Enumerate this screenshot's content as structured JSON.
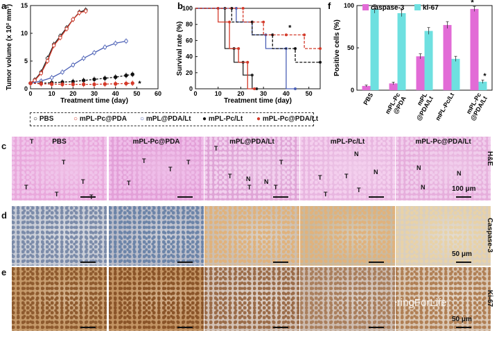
{
  "panels": {
    "a": "a",
    "b": "b",
    "c": "c",
    "d": "d",
    "e": "e",
    "f": "f"
  },
  "legend": [
    "PBS",
    "mPL-Pc@PDA",
    "mPL@PDA/Lt",
    "mPL-Pc/Lt",
    "mPL-Pc@PDA/Lt"
  ],
  "colors": {
    "pbs": "#222222",
    "pc_pda": "#d43a2a",
    "pda_lt": "#4a5fb5",
    "pc_lt": "#111111",
    "pc_pda_lt": "#d43a2a",
    "caspase": "#e26bd6",
    "ki67": "#6ee0e0"
  },
  "chart_data": [
    {
      "id": "a",
      "type": "line",
      "xlabel": "Treatment time  (day)",
      "ylabel": "Tumor volume (x 10² mm³)",
      "xlim": [
        0,
        60
      ],
      "ylim": [
        0,
        15
      ],
      "xticks": [
        "0",
        "10",
        "20",
        "30",
        "40",
        "50",
        "60"
      ],
      "yticks": [
        "0",
        "5",
        "10",
        "15"
      ],
      "annotation": "*",
      "series": [
        {
          "name": "PBS",
          "x": [
            0,
            2,
            5,
            8,
            11,
            14,
            17,
            20,
            23,
            26
          ],
          "y": [
            1,
            1.6,
            3,
            5.5,
            8,
            9.5,
            11,
            12.5,
            13.8,
            14.2
          ]
        },
        {
          "name": "mPL-Pc@PDA",
          "x": [
            0,
            2,
            5,
            8,
            11,
            14,
            17,
            20,
            23,
            26
          ],
          "y": [
            1,
            1.5,
            2.8,
            5,
            7.8,
            9.2,
            10.8,
            12.5,
            13.7,
            14
          ]
        },
        {
          "name": "mPL@PDA/Lt",
          "x": [
            0,
            5,
            10,
            15,
            20,
            25,
            30,
            35,
            40,
            45
          ],
          "y": [
            1,
            1.4,
            2,
            3,
            4.3,
            5.5,
            6.5,
            7.5,
            8.2,
            8.6
          ]
        },
        {
          "name": "mPL-Pc/Lt",
          "x": [
            0,
            5,
            10,
            15,
            20,
            25,
            30,
            35,
            40,
            45,
            48
          ],
          "y": [
            1,
            1,
            1.1,
            1.2,
            1.3,
            1.5,
            1.7,
            1.9,
            2.1,
            2.4,
            2.6
          ]
        },
        {
          "name": "mPL-Pc@PDA/Lt",
          "x": [
            0,
            5,
            10,
            15,
            20,
            25,
            30,
            35,
            40,
            45,
            48
          ],
          "y": [
            1,
            0.9,
            0.85,
            0.8,
            0.8,
            0.8,
            0.8,
            0.85,
            0.9,
            0.95,
            1
          ]
        }
      ]
    },
    {
      "id": "b",
      "type": "line",
      "xlabel": "Treatment time  (day)",
      "ylabel": "Survival rate (%)",
      "xlim": [
        0,
        55
      ],
      "ylim": [
        0,
        100
      ],
      "xticks": [
        "0",
        "10",
        "20",
        "30",
        "40",
        "50"
      ],
      "yticks": [
        "0",
        "20",
        "40",
        "60",
        "80",
        "100"
      ],
      "annotation": "*",
      "series": [
        {
          "name": "PBS",
          "x": [
            0,
            13,
            13,
            17,
            17,
            21,
            21,
            25,
            25,
            27
          ],
          "y": [
            100,
            100,
            50,
            50,
            33,
            33,
            17,
            17,
            0,
            0
          ]
        },
        {
          "name": "mPL-Pc@PDA",
          "x": [
            0,
            10,
            10,
            15,
            15,
            19,
            19,
            23,
            23,
            26
          ],
          "y": [
            100,
            100,
            83,
            83,
            50,
            50,
            33,
            33,
            0,
            0
          ]
        },
        {
          "name": "mPL@PDA/Lt",
          "x": [
            0,
            18,
            18,
            25,
            25,
            31,
            31,
            40,
            40,
            44
          ],
          "y": [
            100,
            100,
            83,
            83,
            67,
            67,
            50,
            50,
            0,
            0
          ]
        },
        {
          "name": "mPL-Pc/Lt",
          "x": [
            0,
            16,
            16,
            25,
            25,
            34,
            34,
            44,
            44,
            55
          ],
          "y": [
            100,
            100,
            83,
            83,
            67,
            67,
            50,
            50,
            33,
            33
          ]
        },
        {
          "name": "mPL-Pc@PDA/Lt",
          "x": [
            0,
            21,
            21,
            30,
            30,
            40,
            40,
            48,
            48,
            55
          ],
          "y": [
            100,
            100,
            83,
            83,
            67,
            67,
            67,
            67,
            50,
            50
          ]
        }
      ]
    },
    {
      "id": "f",
      "type": "bar",
      "ylabel": "Positive cells (%)",
      "ylim": [
        0,
        100
      ],
      "yticks": [
        "0",
        "50",
        "100"
      ],
      "categories": [
        "PBS",
        "mPL-Pc\n@PDA",
        "mPL\n@PDA/Lt",
        "mPL-Pc/Lt",
        "mPL-Pc\n@PDA/Lt"
      ],
      "series": [
        {
          "name": "caspase-3",
          "values": [
            5,
            8,
            40,
            77,
            96
          ],
          "errors": [
            1,
            1.5,
            3,
            4,
            3
          ]
        },
        {
          "name": "ki-67",
          "values": [
            96,
            91,
            70,
            37,
            10
          ],
          "errors": [
            5,
            4,
            4,
            3,
            2
          ]
        }
      ],
      "annotation": "*"
    }
  ],
  "micro": {
    "columns": [
      "PBS",
      "mPL-Pc@PDA",
      "mPL@PDA/Lt",
      "mPL-Pc/Lt",
      "mPL-Pc@PDA/Lt"
    ],
    "rows": [
      {
        "letter": "c",
        "label": "H&E",
        "scale": "100 μm"
      },
      {
        "letter": "d",
        "label": "Caspase-3",
        "scale": "50 μm"
      },
      {
        "letter": "e",
        "label": "Ki-67",
        "scale": "50 μm"
      }
    ],
    "marks": {
      "T": "T",
      "N": "N"
    },
    "watermark": "EngineeringForLife"
  }
}
